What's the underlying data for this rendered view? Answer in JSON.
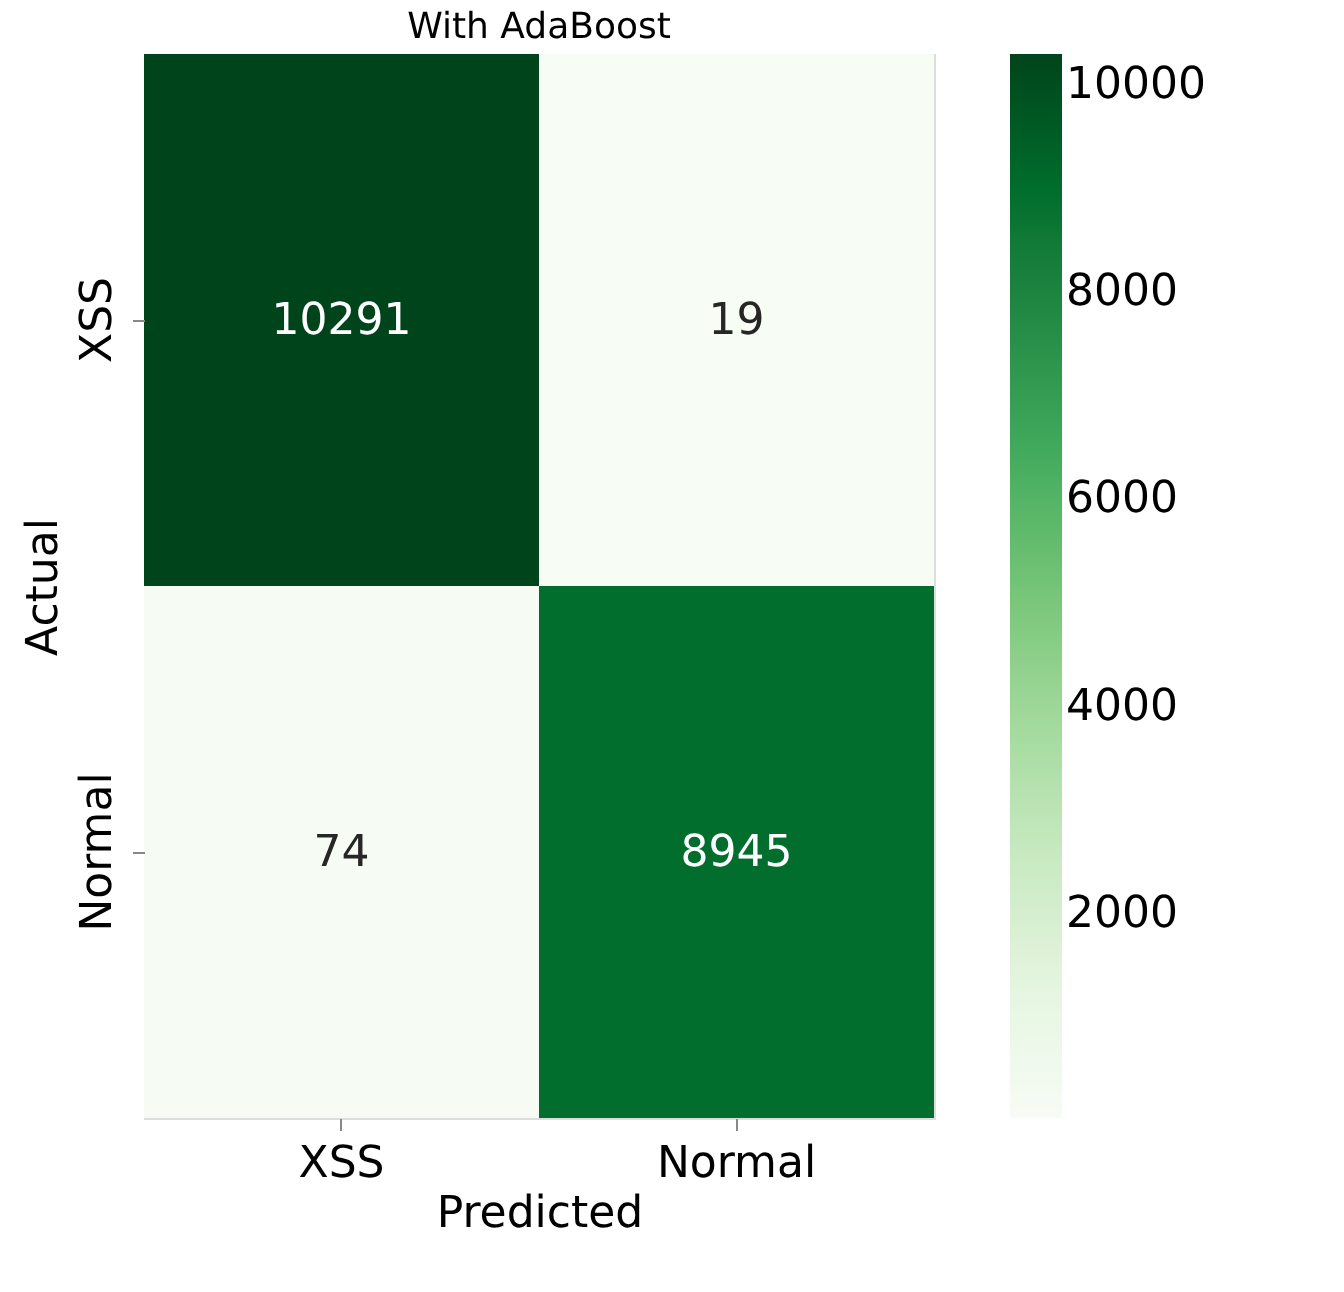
{
  "chart_data": {
    "type": "heatmap",
    "title": "With AdaBoost",
    "xlabel": "Predicted",
    "ylabel": "Actual",
    "categories": [
      "XSS",
      "Normal"
    ],
    "y_categories": [
      "XSS",
      "Normal"
    ],
    "cells": [
      [
        10291,
        19
      ],
      [
        74,
        8945
      ]
    ],
    "data_labels": true,
    "clim": [
      19,
      10291
    ],
    "cticks": [
      2000,
      4000,
      6000,
      8000,
      10000
    ]
  }
}
